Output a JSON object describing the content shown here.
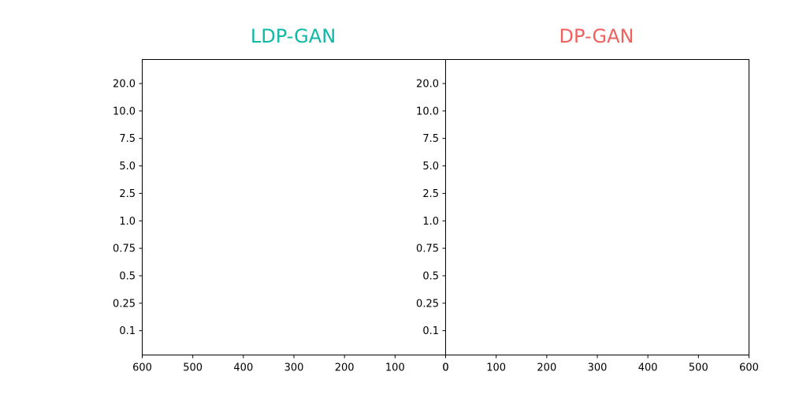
{
  "chart_data": {
    "type": "bar",
    "layout": "back-to-back horizontal bars (population pyramid)",
    "categories": [
      "20.0",
      "10.0",
      "7.5",
      "5.0",
      "2.5",
      "1.0",
      "0.75",
      "0.5",
      "0.25",
      "0.1"
    ],
    "panels": [
      {
        "title": "LDP-GAN",
        "title_color": "#10b9a5",
        "x_direction": "reversed",
        "xlim": [
          0,
          600
        ],
        "xticks": [
          600,
          500,
          400,
          300,
          200,
          100,
          0
        ],
        "values": [
          0,
          0,
          0,
          0,
          0,
          0,
          0,
          0,
          0,
          0
        ]
      },
      {
        "title": "DP-GAN",
        "title_color": "#f0605c",
        "x_direction": "normal",
        "xlim": [
          0,
          600
        ],
        "xticks": [
          0,
          100,
          200,
          300,
          400,
          500,
          600
        ],
        "values": [
          0,
          0,
          0,
          0,
          0,
          0,
          0,
          0,
          0,
          0
        ]
      }
    ],
    "grid": false,
    "legend": "none"
  }
}
